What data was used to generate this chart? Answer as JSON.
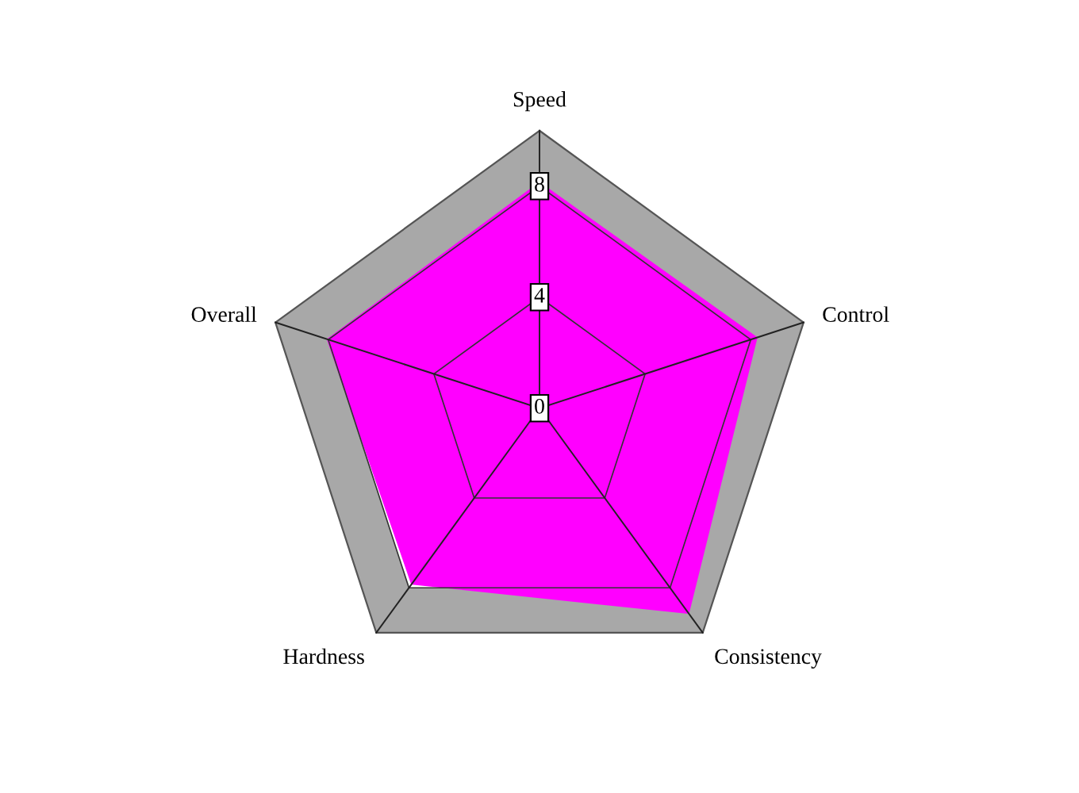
{
  "chart_data": {
    "type": "radar",
    "categories": [
      "Speed",
      "Control",
      "Consistency",
      "Hardness",
      "Overall"
    ],
    "series": [
      {
        "color": "#ff00ff",
        "values": [
          8.1,
          8.2,
          9.1,
          7.8,
          8.0
        ]
      }
    ],
    "ylim": [
      0,
      10
    ],
    "yticks": [
      0,
      4,
      8
    ],
    "grid": true,
    "legend": false
  }
}
